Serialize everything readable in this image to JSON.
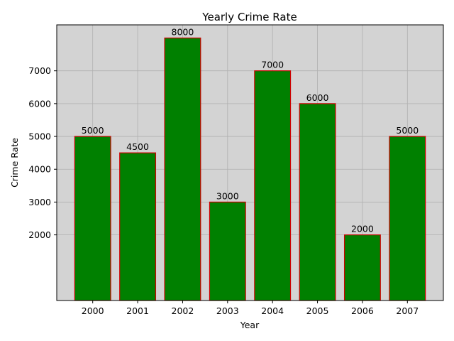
{
  "chart_data": {
    "type": "bar",
    "title": "Yearly Crime Rate",
    "xlabel": "Year",
    "ylabel": "Crime Rate",
    "categories": [
      "2000",
      "2001",
      "2002",
      "2003",
      "2004",
      "2005",
      "2006",
      "2007"
    ],
    "values": [
      5000,
      4500,
      8000,
      3000,
      7000,
      6000,
      2000,
      5000
    ],
    "data_labels": [
      "5000",
      "4500",
      "8000",
      "3000",
      "7000",
      "6000",
      "2000",
      "5000"
    ],
    "yticks": [
      2000,
      3000,
      4000,
      5000,
      6000,
      7000
    ],
    "ytick_labels": [
      "2000",
      "3000",
      "4000",
      "5000",
      "6000",
      "7000"
    ],
    "ylim": [
      0,
      8400
    ],
    "grid": true,
    "legend": false,
    "colors": {
      "bar_fill": "#008000",
      "bar_edge": "#cc0000",
      "plot_background": "#d3d3d3",
      "grid": "#b0b0b0"
    }
  }
}
